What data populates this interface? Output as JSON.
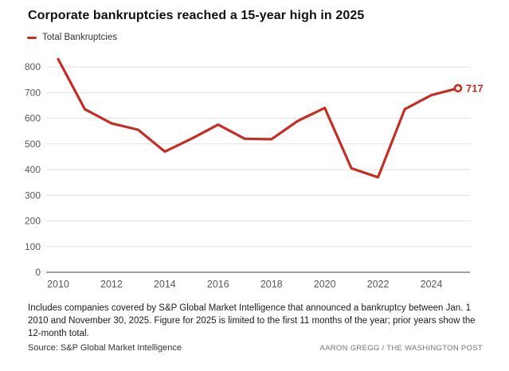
{
  "header": {
    "title": "Corporate bankruptcies reached a 15-year high in 2025",
    "legend_label": "Total Bankruptcies"
  },
  "chart_data": {
    "type": "line",
    "title": "Corporate bankruptcies reached a 15-year high in 2025",
    "x": [
      2010,
      2011,
      2012,
      2013,
      2014,
      2015,
      2016,
      2017,
      2018,
      2019,
      2020,
      2021,
      2022,
      2023,
      2024,
      2025
    ],
    "series": [
      {
        "name": "Total Bankruptcies",
        "values": [
          830,
          635,
          580,
          555,
          470,
          520,
          575,
          520,
          518,
          590,
          640,
          405,
          370,
          635,
          690,
          717
        ]
      }
    ],
    "xlabel": "",
    "ylabel": "",
    "ylim": [
      0,
      800
    ],
    "y_ticks": [
      0,
      100,
      200,
      300,
      400,
      500,
      600,
      700,
      800
    ],
    "x_tick_years": [
      2010,
      2012,
      2014,
      2016,
      2018,
      2020,
      2022,
      2024
    ],
    "grid": "horizontal",
    "legend_position": "top-left",
    "end_point_label": "717",
    "end_point_marker": "open-circle"
  },
  "footer": {
    "note": "Includes companies covered by S&P Global Market Intelligence that announced a bankruptcy between Jan. 1 2010 and November 30, 2025. Figure for 2025 is limited to the first 11 months of the year; prior years show the 12-month total.",
    "source": "Source: S&P Global Market Intelligence",
    "credit": "AARON GREGG / THE WASHINGTON POST"
  },
  "colors": {
    "line": "#c42e24",
    "title_text": "#111111",
    "tick_label": "#595959",
    "gridline": "#e2e2e2",
    "axis_line": "#a3a3a3",
    "note_text": "#1b1b1b",
    "credit_text": "#757575"
  }
}
